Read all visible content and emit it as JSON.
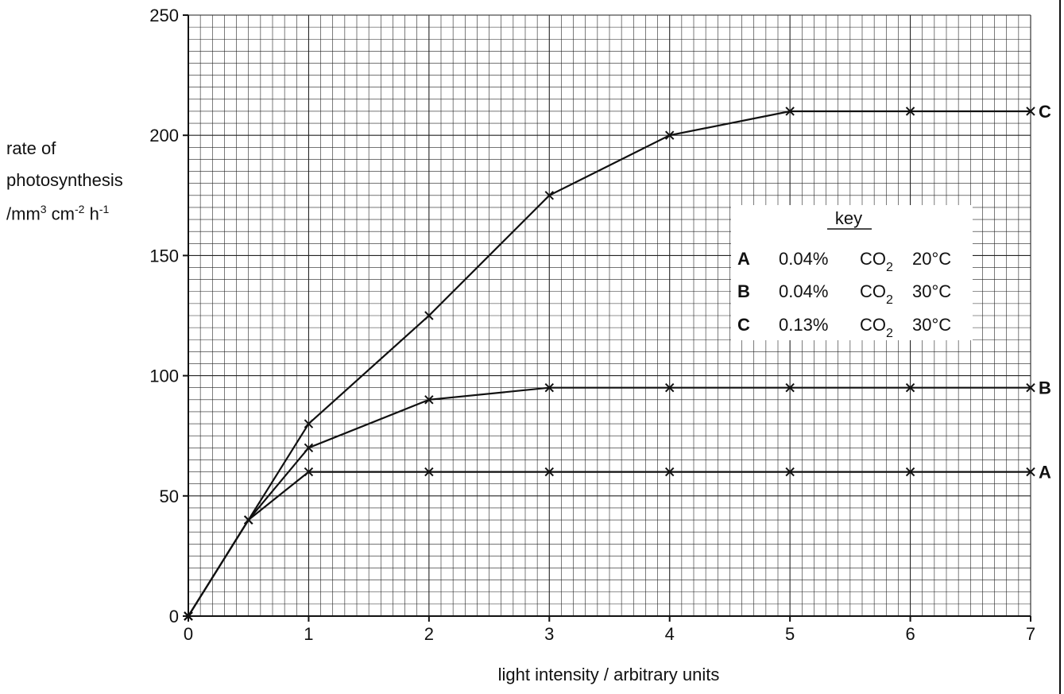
{
  "chart_data": {
    "type": "line",
    "xlabel": "light intensity / arbitrary units",
    "ylabel_lines": [
      "rate of",
      "photosynthesis",
      "/mm",
      "3",
      " cm",
      "-2",
      " h",
      "-1"
    ],
    "xlim": [
      0,
      7
    ],
    "ylim": [
      0,
      250
    ],
    "x_ticks": [
      "0",
      "1",
      "2",
      "3",
      "4",
      "5",
      "6",
      "7"
    ],
    "y_ticks": [
      "0",
      "50",
      "100",
      "150",
      "200",
      "250"
    ],
    "grid": true,
    "legend_placement": "right",
    "key_title": "key",
    "series": [
      {
        "name": "A",
        "conditions": [
          "0.04%",
          "CO2",
          "20°C"
        ],
        "x": [
          0,
          0.5,
          1,
          2,
          3,
          4,
          5,
          6,
          7
        ],
        "y": [
          0,
          40,
          60,
          60,
          60,
          60,
          60,
          60,
          60
        ]
      },
      {
        "name": "B",
        "conditions": [
          "0.04%",
          "CO2",
          "30°C"
        ],
        "x": [
          0,
          0.5,
          1,
          2,
          3,
          4,
          5,
          6,
          7
        ],
        "y": [
          0,
          40,
          70,
          90,
          95,
          95,
          95,
          95,
          95
        ]
      },
      {
        "name": "C",
        "conditions": [
          "0.13%",
          "CO2",
          "30°C"
        ],
        "x": [
          0,
          0.5,
          1,
          2,
          3,
          4,
          5,
          6,
          7
        ],
        "y": [
          0,
          40,
          80,
          125,
          175,
          200,
          210,
          210,
          210
        ]
      }
    ]
  }
}
